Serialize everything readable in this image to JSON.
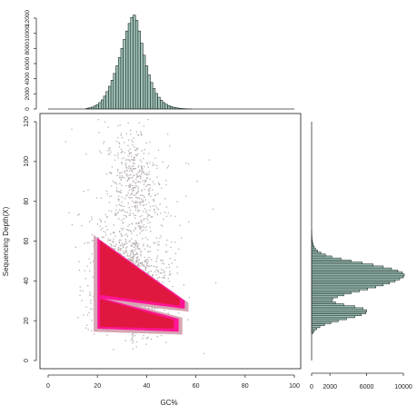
{
  "chart_data": [
    {
      "type": "scatter",
      "panel": "main",
      "xlabel": "GC%",
      "ylabel": "Sequencing Depth(X)",
      "xlim": [
        0,
        100
      ],
      "ylim": [
        0,
        125
      ],
      "x_ticks": [
        0,
        20,
        40,
        60,
        80,
        100
      ],
      "y_ticks": [
        0,
        20,
        40,
        60,
        80,
        100,
        120
      ],
      "grid": false,
      "colors": {
        "sparse": "#b9b0b0",
        "medium": "#d7a5b4",
        "dense": "#e0183f",
        "edge": "#ff1493"
      },
      "clusters": [
        {
          "name": "",
          "gc_range": [
            20,
            54
          ],
          "depth_range": [
            14,
            32
          ],
          "peak_gc": 30,
          "peak_depth": 24,
          "density": "dense"
        },
        {
          "name": "",
          "gc_range": [
            20,
            57
          ],
          "depth_range": [
            28,
            62
          ],
          "peak_gc": 33,
          "peak_depth": 47,
          "density": "dense"
        },
        {
          "name": "",
          "gc_range": [
            25,
            50
          ],
          "depth_range": [
            62,
            112
          ],
          "peak_gc": 34,
          "peak_depth": 90,
          "density": "sparse"
        }
      ]
    },
    {
      "type": "bar",
      "panel": "top-histogram",
      "orientation": "vertical",
      "xlabel": "",
      "ylabel": "",
      "xlim": [
        0,
        100
      ],
      "ylim": [
        0,
        12500
      ],
      "y_ticks": [
        0,
        2000,
        4000,
        6000,
        8000,
        10000,
        12000
      ],
      "categories": [
        16,
        17,
        18,
        19,
        20,
        21,
        22,
        23,
        24,
        25,
        26,
        27,
        28,
        29,
        30,
        31,
        32,
        33,
        34,
        35,
        36,
        37,
        38,
        39,
        40,
        41,
        42,
        43,
        44,
        45,
        46,
        47,
        48,
        49,
        50,
        51,
        52,
        53,
        54,
        55,
        56,
        57,
        58
      ],
      "values": [
        100,
        160,
        250,
        390,
        580,
        850,
        1200,
        1700,
        2300,
        3000,
        3800,
        4700,
        5700,
        6800,
        8000,
        9200,
        10300,
        11300,
        12100,
        12400,
        11700,
        10300,
        8700,
        7100,
        5700,
        4500,
        3500,
        2700,
        2050,
        1550,
        1150,
        850,
        620,
        450,
        320,
        230,
        160,
        110,
        75,
        50,
        35,
        22,
        15
      ]
    },
    {
      "type": "bar",
      "panel": "right-histogram",
      "orientation": "horizontal",
      "xlabel": "",
      "ylabel": "",
      "xlim": [
        0,
        10500
      ],
      "ylim": [
        0,
        125
      ],
      "x_ticks": [
        0,
        2000,
        6000,
        10000
      ],
      "categories": [
        14,
        15,
        16,
        17,
        18,
        19,
        20,
        21,
        22,
        23,
        24,
        25,
        26,
        27,
        28,
        29,
        30,
        31,
        32,
        33,
        34,
        35,
        36,
        37,
        38,
        39,
        40,
        41,
        42,
        43,
        44,
        45,
        46,
        47,
        48,
        49,
        50,
        51,
        52,
        53,
        54,
        55,
        56,
        57,
        58,
        59,
        60,
        61,
        62,
        63,
        64,
        65
      ],
      "values": [
        150,
        300,
        550,
        900,
        1400,
        2100,
        2900,
        3800,
        4700,
        5400,
        5900,
        6000,
        5600,
        4700,
        3500,
        2600,
        2200,
        2300,
        2800,
        3500,
        4300,
        5200,
        6100,
        7000,
        7800,
        8500,
        9100,
        9600,
        10000,
        10100,
        9900,
        9400,
        8700,
        7800,
        6700,
        5500,
        4300,
        3200,
        2200,
        1500,
        1000,
        650,
        420,
        280,
        180,
        120,
        80,
        50,
        35,
        25,
        18,
        12
      ]
    }
  ]
}
